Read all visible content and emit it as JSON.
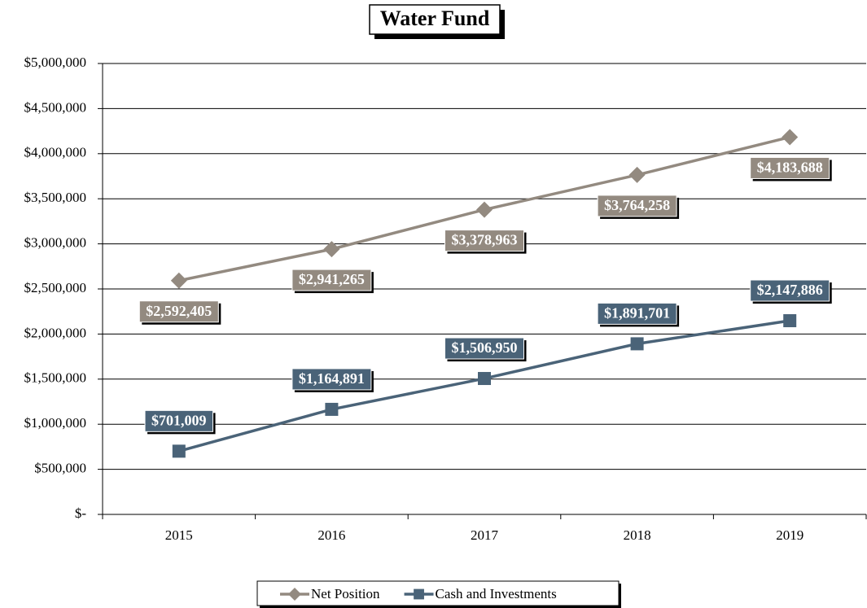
{
  "chart_data": {
    "type": "line",
    "title": "Water Fund",
    "categories": [
      "2015",
      "2016",
      "2017",
      "2018",
      "2019"
    ],
    "series": [
      {
        "name": "Net Position",
        "color": "#938a80",
        "marker": "diamond",
        "values": [
          2592405,
          2941265,
          3378963,
          3764258,
          4183688
        ],
        "value_labels": [
          "$2,592,405",
          "$2,941,265",
          "$3,378,963",
          "$3,764,258",
          "$4,183,688"
        ]
      },
      {
        "name": "Cash and Investments",
        "color": "#4a6378",
        "marker": "square",
        "values": [
          701009,
          1164891,
          1506950,
          1891701,
          2147886
        ],
        "value_labels": [
          "$701,009",
          "$1,164,891",
          "$1,506,950",
          "$1,891,701",
          "$2,147,886"
        ]
      }
    ],
    "ylim": [
      0,
      5000000
    ],
    "yticks": [
      {
        "value": 0,
        "label": "$-"
      },
      {
        "value": 500000,
        "label": "$500,000"
      },
      {
        "value": 1000000,
        "label": "$1,000,000"
      },
      {
        "value": 1500000,
        "label": "$1,500,000"
      },
      {
        "value": 2000000,
        "label": "$2,000,000"
      },
      {
        "value": 2500000,
        "label": "$2,500,000"
      },
      {
        "value": 3000000,
        "label": "$3,000,000"
      },
      {
        "value": 3500000,
        "label": "$3,500,000"
      },
      {
        "value": 4000000,
        "label": "$4,000,000"
      },
      {
        "value": 4500000,
        "label": "$4,500,000"
      },
      {
        "value": 5000000,
        "label": "$5,000,000"
      }
    ],
    "grid": true,
    "legend": "bottom"
  }
}
